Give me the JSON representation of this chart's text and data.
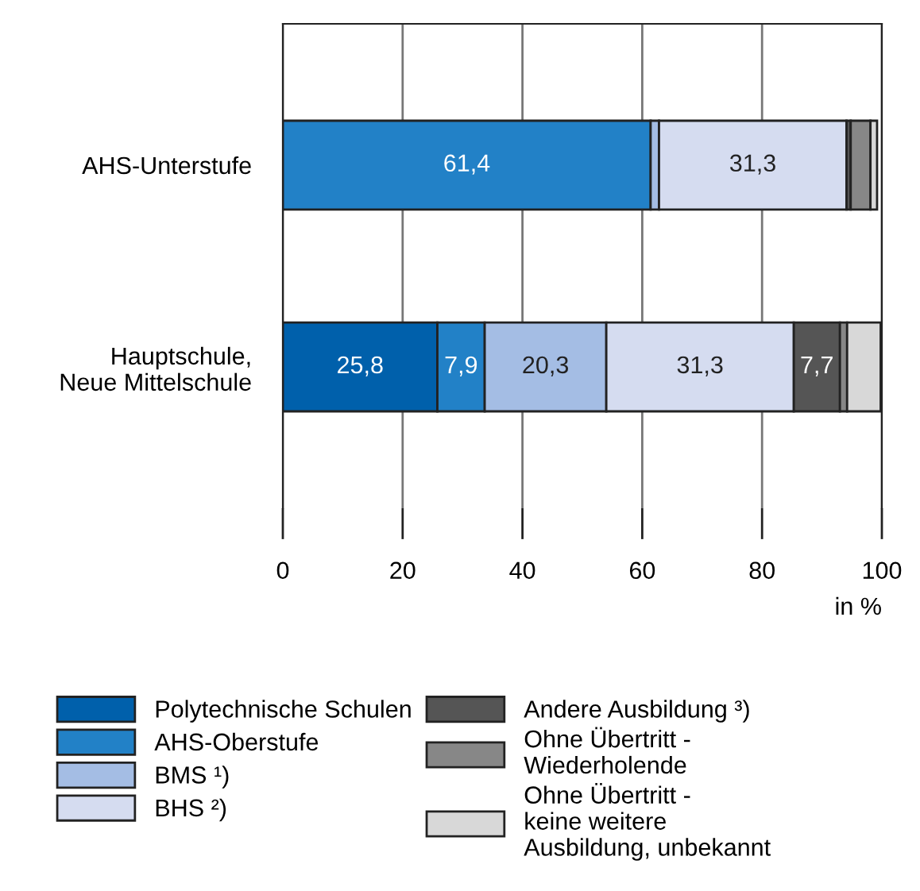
{
  "chart_data": {
    "type": "bar",
    "orientation": "horizontal",
    "stacked": true,
    "categories": [
      "AHS-Unterstufe",
      "Hauptschule,\nNeue Mittelschule"
    ],
    "xlabel": "in %",
    "xlim": [
      0,
      100
    ],
    "xticks": [
      0,
      20,
      40,
      60,
      80,
      100
    ],
    "grid": "x",
    "legend": "bottom",
    "series": [
      {
        "name": "Polytechnische Schulen",
        "color": "#0060ab",
        "values": [
          null,
          25.8
        ],
        "value_labels": [
          null,
          "25,8"
        ]
      },
      {
        "name": "AHS-Oberstufe",
        "color": "#2281c7",
        "values": [
          61.4,
          7.9
        ],
        "value_labels": [
          "61,4",
          "7,9"
        ]
      },
      {
        "name": "BMS ¹)",
        "color": "#a4bde4",
        "values": [
          1.4,
          20.3
        ],
        "value_labels": [
          null,
          "20,3"
        ]
      },
      {
        "name": "BHS ²)",
        "color": "#d5dcf0",
        "values": [
          31.3,
          31.3
        ],
        "value_labels": [
          "31,3",
          "31,3"
        ]
      },
      {
        "name": "Andere Ausbildung ³)",
        "color": "#555555",
        "values": [
          0.7,
          7.7
        ],
        "value_labels": [
          null,
          "7,7"
        ]
      },
      {
        "name": "Ohne Übertritt -\nWiederholende",
        "color": "#878787",
        "values": [
          3.3,
          1.2
        ],
        "value_labels": [
          null,
          null
        ]
      },
      {
        "name": "Ohne Übertritt -\nkeine weitere\nAusbildung, unbekannt",
        "color": "#d8d8d8",
        "values": [
          1.1,
          5.6
        ],
        "value_labels": [
          null,
          null
        ]
      }
    ]
  }
}
